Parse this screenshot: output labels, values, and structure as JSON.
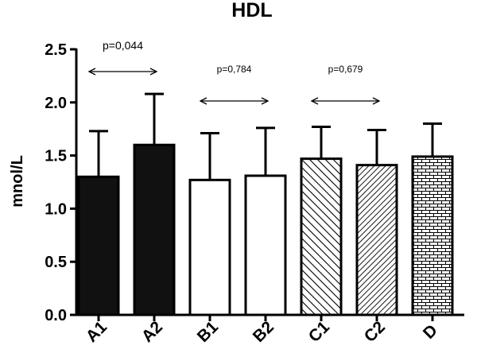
{
  "chart_data": {
    "type": "bar",
    "title": "HDL",
    "ylabel": "mnol/L",
    "xlabel": "",
    "ylim": [
      0,
      2.5
    ],
    "yticks": [
      "0.0",
      "0.5",
      "1.0",
      "1.5",
      "2.0",
      "2.5"
    ],
    "categories": [
      "A1",
      "A2",
      "B1",
      "B2",
      "C1",
      "C2",
      "D"
    ],
    "values": [
      1.3,
      1.6,
      1.27,
      1.31,
      1.47,
      1.41,
      1.49
    ],
    "error": [
      0.43,
      0.48,
      0.44,
      0.45,
      0.3,
      0.33,
      0.31
    ],
    "fills": [
      "solid",
      "solid",
      "empty",
      "empty",
      "diag-up",
      "diag-down",
      "brick"
    ],
    "grid": false,
    "comparisons": [
      {
        "from": "A1",
        "to": "A2",
        "label": "p=0,044"
      },
      {
        "from": "B1",
        "to": "B2",
        "label": "p=0,784"
      },
      {
        "from": "C1",
        "to": "C2",
        "label": "p=0,679"
      }
    ]
  }
}
